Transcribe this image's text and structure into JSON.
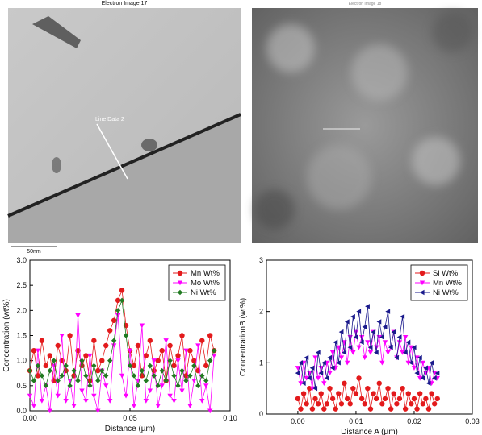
{
  "images": [
    {
      "title": "Electron Image 17",
      "labels": [
        "Line Data 2",
        "50nm"
      ]
    },
    {
      "title": "Electron Image 18"
    }
  ],
  "chart_data": [
    {
      "type": "line",
      "x_label": "Distance (µm)",
      "y_label": "Concentration (wt%)",
      "xlim": [
        0,
        0.1
      ],
      "xticks": [
        {
          "value": 0,
          "label": "0.00"
        },
        {
          "value": 0.05,
          "label": "0.05"
        },
        {
          "value": 0.1,
          "label": "0.10"
        }
      ],
      "ylim": [
        0,
        3
      ],
      "yticks": [
        {
          "value": 0,
          "label": "0.0"
        },
        {
          "value": 0.5,
          "label": "0.5"
        },
        {
          "value": 1,
          "label": "1.0"
        },
        {
          "value": 1.5,
          "label": "1.5"
        },
        {
          "value": 2,
          "label": "2.0"
        },
        {
          "value": 2.5,
          "label": "2.5"
        },
        {
          "value": 3,
          "label": "3.0"
        }
      ],
      "legend": "upper right",
      "x": [
        0,
        0.002,
        0.004,
        0.006,
        0.008,
        0.01,
        0.012,
        0.014,
        0.016,
        0.018,
        0.02,
        0.022,
        0.024,
        0.026,
        0.028,
        0.03,
        0.032,
        0.034,
        0.036,
        0.038,
        0.04,
        0.042,
        0.044,
        0.046,
        0.048,
        0.05,
        0.052,
        0.054,
        0.056,
        0.058,
        0.06,
        0.062,
        0.064,
        0.066,
        0.068,
        0.07,
        0.072,
        0.074,
        0.076,
        0.078,
        0.08,
        0.082,
        0.084,
        0.086,
        0.088,
        0.09,
        0.092
      ],
      "series": [
        {
          "name": "Mn Wt%",
          "color": "#e31a1c",
          "marker": "circle",
          "values": [
            0.8,
            1.2,
            0.7,
            1.4,
            0.9,
            1.1,
            0.6,
            1.3,
            1.0,
            0.8,
            1.5,
            0.7,
            1.2,
            0.9,
            1.1,
            0.6,
            1.4,
            0.8,
            1.0,
            1.3,
            1.6,
            1.8,
            2.2,
            2.4,
            1.7,
            1.2,
            0.9,
            1.3,
            0.7,
            1.1,
            1.4,
            0.8,
            1.0,
            1.2,
            0.6,
            1.3,
            0.9,
            1.1,
            1.5,
            0.7,
            1.2,
            1.0,
            0.8,
            1.4,
            0.9,
            1.5,
            1.2
          ]
        },
        {
          "name": "Mo Wt%",
          "color": "#ff00ff",
          "marker": "triangle-down",
          "values": [
            0.3,
            0.1,
            1.2,
            0.2,
            0.5,
            0.0,
            0.9,
            0.3,
            1.5,
            0.2,
            0.6,
            0.1,
            1.9,
            0.4,
            0.2,
            1.1,
            0.3,
            0.0,
            0.8,
            0.5,
            0.2,
            1.3,
            1.9,
            0.7,
            0.3,
            1.2,
            0.1,
            0.6,
            1.7,
            0.2,
            0.4,
            1.0,
            0.1,
            0.5,
            1.4,
            0.3,
            0.2,
            1.0,
            0.4,
            1.2,
            0.1,
            0.6,
            1.3,
            0.2,
            0.5,
            0.0,
            1.1
          ]
        },
        {
          "name": "Ni Wt%",
          "color": "#217a21",
          "marker": "diamond",
          "values": [
            0.8,
            0.6,
            0.9,
            0.7,
            0.5,
            0.8,
            1.0,
            0.6,
            0.7,
            0.9,
            0.5,
            0.8,
            0.6,
            1.0,
            0.7,
            0.5,
            0.9,
            0.6,
            0.8,
            0.7,
            1.0,
            1.4,
            2.0,
            2.2,
            1.5,
            0.9,
            0.7,
            0.5,
            0.8,
            0.6,
            0.9,
            0.7,
            0.5,
            0.8,
            0.6,
            1.0,
            0.7,
            0.5,
            0.8,
            0.6,
            0.7,
            0.9,
            0.5,
            0.7,
            0.6,
            1.0,
            1.2
          ]
        }
      ]
    },
    {
      "type": "line",
      "x_label": "Distance A (µm)",
      "y_label": "ConcentrationB (wt%)",
      "xlim": [
        -0.0054,
        0.03
      ],
      "xticks": [
        {
          "value": 0,
          "label": "0.00"
        },
        {
          "value": 0.01,
          "label": "0.01"
        },
        {
          "value": 0.02,
          "label": "0.02"
        },
        {
          "value": 0.03,
          "label": "0.03"
        }
      ],
      "ylim": [
        0,
        3
      ],
      "yticks": [
        0,
        1,
        2,
        3
      ],
      "legend": "upper right",
      "x": [
        0,
        0.0005,
        0.001,
        0.0015,
        0.002,
        0.0025,
        0.003,
        0.0035,
        0.004,
        0.0045,
        0.005,
        0.0055,
        0.006,
        0.0065,
        0.007,
        0.0075,
        0.008,
        0.0085,
        0.009,
        0.0095,
        0.01,
        0.0105,
        0.011,
        0.0115,
        0.012,
        0.0125,
        0.013,
        0.0135,
        0.014,
        0.0145,
        0.015,
        0.0155,
        0.016,
        0.0165,
        0.017,
        0.0175,
        0.018,
        0.0185,
        0.019,
        0.0195,
        0.02,
        0.0205,
        0.021,
        0.0215,
        0.022,
        0.0225,
        0.023,
        0.0235,
        0.024
      ],
      "series": [
        {
          "name": "Si Wt%",
          "color": "#e31a1c",
          "marker": "circle",
          "values": [
            0.3,
            0.1,
            0.4,
            0.2,
            0.5,
            0.1,
            0.3,
            0.2,
            0.4,
            0.1,
            0.2,
            0.5,
            0.3,
            0.1,
            0.4,
            0.2,
            0.6,
            0.3,
            0.2,
            0.5,
            0.4,
            0.7,
            0.3,
            0.2,
            0.5,
            0.1,
            0.4,
            0.3,
            0.6,
            0.2,
            0.3,
            0.5,
            0.1,
            0.4,
            0.2,
            0.3,
            0.5,
            0.1,
            0.4,
            0.2,
            0.3,
            0.1,
            0.4,
            0.2,
            0.3,
            0.1,
            0.4,
            0.2,
            0.3
          ]
        },
        {
          "name": "Mn Wt%",
          "color": "#ff00ff",
          "marker": "triangle-down",
          "values": [
            0.9,
            0.6,
            1.0,
            0.7,
            0.8,
            0.5,
            1.1,
            0.7,
            0.9,
            0.6,
            1.0,
            0.8,
            1.2,
            0.9,
            1.3,
            1.1,
            1.4,
            1.0,
            1.5,
            1.2,
            1.6,
            1.3,
            1.5,
            1.1,
            1.4,
            1.2,
            1.6,
            1.3,
            1.5,
            1.0,
            1.4,
            1.2,
            1.3,
            1.6,
            1.1,
            1.4,
            1.2,
            1.5,
            1.0,
            1.3,
            0.9,
            1.1,
            0.7,
            1.0,
            0.8,
            0.9,
            0.6,
            0.8,
            0.7
          ]
        },
        {
          "name": "Ni Wt%",
          "color": "#1a1a8c",
          "marker": "triangle-left",
          "values": [
            0.8,
            1.0,
            0.6,
            1.1,
            0.7,
            0.9,
            0.5,
            1.2,
            0.8,
            1.0,
            0.7,
            1.1,
            0.9,
            1.4,
            1.0,
            1.6,
            1.2,
            1.8,
            1.3,
            1.9,
            1.5,
            2.0,
            1.4,
            1.7,
            2.1,
            1.3,
            1.6,
            1.2,
            1.8,
            1.5,
            1.7,
            2.0,
            1.3,
            1.6,
            1.1,
            1.5,
            1.9,
            1.2,
            1.4,
            1.0,
            1.3,
            0.8,
            1.1,
            0.7,
            0.9,
            0.6,
            1.0,
            0.7,
            0.8
          ]
        }
      ]
    }
  ]
}
